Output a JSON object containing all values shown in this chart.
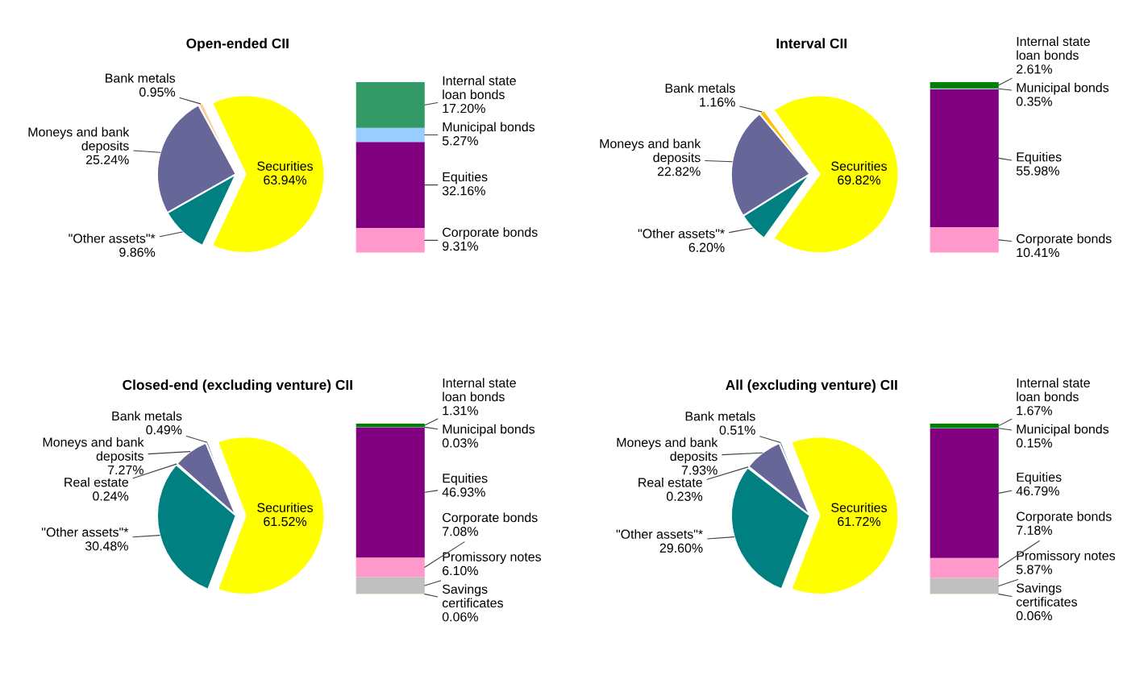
{
  "chart_data": [
    {
      "type": "pie",
      "title": "Open-ended CII",
      "categories": [
        "Securities",
        "Bank metals",
        "Moneys and bank deposits",
        "\"Other assets\"*"
      ],
      "values": [
        63.94,
        0.95,
        25.24,
        9.86
      ],
      "colors": [
        "#ffff00",
        "#ffcc99",
        "#666699",
        "#008080"
      ],
      "value_labels": [
        "63.94%",
        "0.95%",
        "25.24%",
        "9.86%"
      ]
    },
    {
      "type": "bar",
      "stacked": true,
      "categories": [
        null
      ],
      "series": [
        {
          "name": "Corporate bonds",
          "color": "#ff99cc",
          "values": [
            9.31
          ],
          "value_labels": [
            "9.31%"
          ]
        },
        {
          "name": "Equities",
          "color": "#800080",
          "values": [
            32.16
          ],
          "value_labels": [
            "32.16%"
          ]
        },
        {
          "name": "Municipal bonds",
          "color": "#99ccff",
          "values": [
            5.27
          ],
          "value_labels": [
            "5.27%"
          ]
        },
        {
          "name": "Internal state loan bonds",
          "color": "#339966",
          "values": [
            17.2
          ],
          "value_labels": [
            "17.20%"
          ]
        }
      ]
    },
    {
      "type": "pie",
      "title": "Interval CII",
      "categories": [
        "Securities",
        "Bank metals",
        "Moneys and bank deposits",
        "\"Other assets\"*"
      ],
      "values": [
        69.82,
        1.16,
        22.82,
        6.2
      ],
      "colors": [
        "#ffff00",
        "#ffc000",
        "#666699",
        "#008080"
      ],
      "value_labels": [
        "69.82%",
        "1.16%",
        "22.82%",
        "6.20%"
      ]
    },
    {
      "type": "bar",
      "stacked": true,
      "categories": [
        null
      ],
      "series": [
        {
          "name": "Corporate bonds",
          "color": "#ff99cc",
          "values": [
            10.41
          ],
          "value_labels": [
            "10.41%"
          ]
        },
        {
          "name": "Equities",
          "color": "#800080",
          "values": [
            55.98
          ],
          "value_labels": [
            "55.98%"
          ]
        },
        {
          "name": "Municipal bonds",
          "color": "#99ccff",
          "values": [
            0.35
          ],
          "value_labels": [
            "0.35%"
          ]
        },
        {
          "name": "Internal state loan bonds",
          "color": "#008000",
          "values": [
            2.61
          ],
          "value_labels": [
            "2.61%"
          ]
        }
      ]
    },
    {
      "type": "pie",
      "title": "Closed-end (excluding venture) CII",
      "categories": [
        "Securities",
        "Bank metals",
        "Moneys and bank deposits",
        "Real estate",
        "\"Other assets\"*"
      ],
      "values": [
        61.52,
        0.49,
        7.27,
        0.24,
        30.48
      ],
      "colors": [
        "#ffff00",
        "#666699",
        "#666699",
        "#ff6600",
        "#008080"
      ],
      "value_labels": [
        "61.52%",
        "0.49%",
        "7.27%",
        "0.24%",
        "30.48%"
      ]
    },
    {
      "type": "bar",
      "stacked": true,
      "categories": [
        null
      ],
      "series": [
        {
          "name": "Savings certificates",
          "color": "#ffff00",
          "values": [
            0.06
          ],
          "value_labels": [
            "0.06%"
          ]
        },
        {
          "name": "Promissory notes",
          "color": "#c0c0c0",
          "values": [
            6.1
          ],
          "value_labels": [
            "6.10%"
          ]
        },
        {
          "name": "Corporate bonds",
          "color": "#ff99cc",
          "values": [
            7.08
          ],
          "value_labels": [
            "7.08%"
          ]
        },
        {
          "name": "Equities",
          "color": "#800080",
          "values": [
            46.93
          ],
          "value_labels": [
            "46.93%"
          ]
        },
        {
          "name": "Municipal bonds",
          "color": "#99ccff",
          "values": [
            0.03
          ],
          "value_labels": [
            "0.03%"
          ]
        },
        {
          "name": "Internal state loan bonds",
          "color": "#008000",
          "values": [
            1.31
          ],
          "value_labels": [
            "1.31%"
          ]
        }
      ]
    },
    {
      "type": "pie",
      "title": "All (excluding venture) CII",
      "categories": [
        "Securities",
        "Bank metals",
        "Moneys and bank deposits",
        "Real estate",
        "\"Other assets\"*"
      ],
      "values": [
        61.72,
        0.51,
        7.93,
        0.23,
        29.6
      ],
      "colors": [
        "#ffff00",
        "#666699",
        "#666699",
        "#ff6600",
        "#008080"
      ],
      "value_labels": [
        "61.72%",
        "0.51%",
        "7.93%",
        "0.23%",
        "29.60%"
      ]
    },
    {
      "type": "bar",
      "stacked": true,
      "categories": [
        null
      ],
      "series": [
        {
          "name": "Savings certificates",
          "color": "#ffff00",
          "values": [
            0.06
          ],
          "value_labels": [
            "0.06%"
          ]
        },
        {
          "name": "Promissory notes",
          "color": "#c0c0c0",
          "values": [
            5.87
          ],
          "value_labels": [
            "5.87%"
          ]
        },
        {
          "name": "Corporate bonds",
          "color": "#ff99cc",
          "values": [
            7.18
          ],
          "value_labels": [
            "7.18%"
          ]
        },
        {
          "name": "Equities",
          "color": "#800080",
          "values": [
            46.79
          ],
          "value_labels": [
            "46.79%"
          ]
        },
        {
          "name": "Municipal bonds",
          "color": "#99ccff",
          "values": [
            0.15
          ],
          "value_labels": [
            "0.15%"
          ]
        },
        {
          "name": "Internal state loan bonds",
          "color": "#008000",
          "values": [
            1.67
          ],
          "value_labels": [
            "1.67%"
          ]
        }
      ]
    }
  ]
}
